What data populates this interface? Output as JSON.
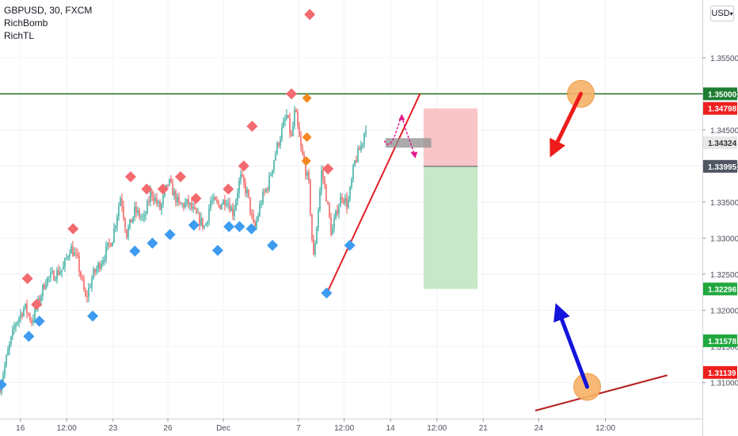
{
  "legend": {
    "symbol": "GBPUSD, 30, FXCM",
    "indicators": [
      "RichBomb",
      "RichTL"
    ]
  },
  "currency_button": {
    "label": "USD",
    "chevron": "chevron-down-icon"
  },
  "chart_data": {
    "type": "candlestick",
    "symbol": "GBPUSD",
    "timeframe": "30",
    "source": "FXCM",
    "ylim": [
      1.305,
      1.363
    ],
    "y_ticks": [
      1.31,
      1.315,
      1.32,
      1.325,
      1.33,
      1.335,
      1.34,
      1.345,
      1.35,
      1.355
    ],
    "y_tick_labels": [
      "1.31000",
      "1.31500",
      "1.32000",
      "1.32500",
      "1.33000",
      "1.33500",
      "1.34000",
      "1.34500",
      "1.35000",
      "1.35500"
    ],
    "x_ticks": [
      {
        "label": "16",
        "pos": 0.029
      },
      {
        "label": "12:00",
        "pos": 0.095
      },
      {
        "label": "23",
        "pos": 0.161
      },
      {
        "label": "26",
        "pos": 0.239
      },
      {
        "label": "Dec",
        "pos": 0.318
      },
      {
        "label": "7",
        "pos": 0.425
      },
      {
        "label": "12:00",
        "pos": 0.49
      },
      {
        "label": "14",
        "pos": 0.556
      },
      {
        "label": "12:00",
        "pos": 0.622
      },
      {
        "label": "21",
        "pos": 0.688
      },
      {
        "label": "24",
        "pos": 0.767
      },
      {
        "label": "12:00",
        "pos": 0.862
      }
    ],
    "price_labels": [
      {
        "value": "1.35000",
        "y": 1.35,
        "color": "#1e7d32"
      },
      {
        "value": "1.34798",
        "y": 1.34798,
        "color": "#ef1f1f"
      },
      {
        "value": "1.34324",
        "y": 1.34324,
        "color": "#e8e8e8"
      },
      {
        "value": "1.33995",
        "y": 1.33995,
        "color": "#4f5561"
      },
      {
        "value": "1.32296",
        "y": 1.32296,
        "color": "#1fa83d"
      },
      {
        "value": "1.31578",
        "y": 1.31578,
        "color": "#1fa83d"
      },
      {
        "value": "1.31139",
        "y": 1.31139,
        "color": "#ef1f1f"
      }
    ],
    "price_path": [
      [
        0.0,
        1.3094
      ],
      [
        0.012,
        1.3145
      ],
      [
        0.022,
        1.3182
      ],
      [
        0.035,
        1.3205
      ],
      [
        0.045,
        1.3185
      ],
      [
        0.055,
        1.3212
      ],
      [
        0.065,
        1.3242
      ],
      [
        0.075,
        1.3248
      ],
      [
        0.09,
        1.3258
      ],
      [
        0.1,
        1.3288
      ],
      [
        0.11,
        1.327
      ],
      [
        0.122,
        1.3215
      ],
      [
        0.132,
        1.3248
      ],
      [
        0.145,
        1.327
      ],
      [
        0.16,
        1.33
      ],
      [
        0.172,
        1.336
      ],
      [
        0.18,
        1.3305
      ],
      [
        0.192,
        1.3338
      ],
      [
        0.205,
        1.3325
      ],
      [
        0.215,
        1.3365
      ],
      [
        0.228,
        1.334
      ],
      [
        0.24,
        1.3378
      ],
      [
        0.255,
        1.3345
      ],
      [
        0.268,
        1.3348
      ],
      [
        0.28,
        1.333
      ],
      [
        0.292,
        1.3315
      ],
      [
        0.3,
        1.3352
      ],
      [
        0.312,
        1.3345
      ],
      [
        0.322,
        1.3355
      ],
      [
        0.332,
        1.3335
      ],
      [
        0.342,
        1.3385
      ],
      [
        0.352,
        1.3362
      ],
      [
        0.362,
        1.331
      ],
      [
        0.372,
        1.3352
      ],
      [
        0.382,
        1.3375
      ],
      [
        0.392,
        1.3418
      ],
      [
        0.4,
        1.3445
      ],
      [
        0.408,
        1.347
      ],
      [
        0.415,
        1.3438
      ],
      [
        0.42,
        1.3478
      ],
      [
        0.428,
        1.3425
      ],
      [
        0.435,
        1.3395
      ],
      [
        0.44,
        1.3372
      ],
      [
        0.446,
        1.3268
      ],
      [
        0.452,
        1.3328
      ],
      [
        0.458,
        1.3395
      ],
      [
        0.465,
        1.3355
      ],
      [
        0.472,
        1.3305
      ],
      [
        0.48,
        1.334
      ],
      [
        0.487,
        1.336
      ],
      [
        0.495,
        1.3345
      ],
      [
        0.505,
        1.3405
      ],
      [
        0.515,
        1.343
      ],
      [
        0.522,
        1.3462
      ]
    ],
    "bearish_markers": [
      [
        0.039,
        1.3244
      ],
      [
        0.052,
        1.3208
      ],
      [
        0.104,
        1.3313
      ],
      [
        0.186,
        1.3385
      ],
      [
        0.209,
        1.3368
      ],
      [
        0.232,
        1.3368
      ],
      [
        0.257,
        1.3385
      ],
      [
        0.279,
        1.3355
      ],
      [
        0.325,
        1.3368
      ],
      [
        0.347,
        1.34
      ],
      [
        0.359,
        1.3455
      ],
      [
        0.415,
        1.35
      ],
      [
        0.441,
        1.361
      ],
      [
        0.467,
        1.3396
      ]
    ],
    "orange_markers": [
      [
        0.437,
        1.3494
      ],
      [
        0.437,
        1.344
      ],
      [
        0.436,
        1.3407
      ]
    ],
    "bullish_markers": [
      [
        0.002,
        1.3097
      ],
      [
        0.041,
        1.3164
      ],
      [
        0.056,
        1.3185
      ],
      [
        0.132,
        1.3192
      ],
      [
        0.192,
        1.3282
      ],
      [
        0.217,
        1.3293
      ],
      [
        0.242,
        1.3305
      ],
      [
        0.276,
        1.3318
      ],
      [
        0.31,
        1.3283
      ],
      [
        0.326,
        1.3316
      ],
      [
        0.341,
        1.3316
      ],
      [
        0.358,
        1.3313
      ],
      [
        0.388,
        1.329
      ],
      [
        0.465,
        1.3224
      ],
      [
        0.498,
        1.329
      ]
    ],
    "resistance_line": {
      "y": 1.35,
      "color": "#1e6b1e"
    },
    "trendline_up": {
      "from": [
        0.467,
        1.3227
      ],
      "to": [
        0.598,
        1.35
      ],
      "color": "#e31e24"
    },
    "trendline_bottom": {
      "from": [
        0.762,
        1.3061
      ],
      "to": [
        0.95,
        1.311
      ],
      "color": "#b71c1c"
    },
    "position": {
      "x0": 0.603,
      "x1": 0.68,
      "stop": 1.34798,
      "entry": 1.33995,
      "target": 1.32296,
      "loss_color": "#f8c6c8",
      "profit_color": "#c9e8c9"
    },
    "entry_zone": {
      "x0": 0.549,
      "x1": 0.614,
      "y_center": 1.3432
    },
    "circles": [
      {
        "at": [
          0.827,
          1.35
        ],
        "color": "#f7b267"
      },
      {
        "at": [
          0.836,
          1.3094
        ],
        "color": "#f7b267"
      }
    ],
    "arrows": [
      {
        "from": [
          0.827,
          1.35
        ],
        "to": [
          0.783,
          1.3412
        ],
        "color": "#ee1c1c"
      },
      {
        "from": [
          0.836,
          1.3094
        ],
        "to": [
          0.791,
          1.321
        ],
        "color": "#1414dc"
      }
    ],
    "pink_path": [
      [
        0.547,
        1.3435
      ],
      [
        0.572,
        1.347
      ],
      [
        0.59,
        1.3415
      ],
      [
        0.583,
        1.3398
      ]
    ]
  }
}
